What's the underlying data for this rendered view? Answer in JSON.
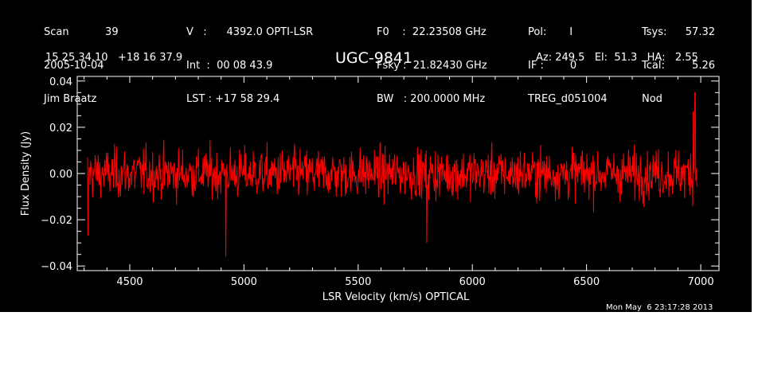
{
  "header": {
    "col1": [
      "Scan           39",
      "2005-10-04",
      "Jim Braatz"
    ],
    "col2": [
      "V   :      4392.0 OPTI-LSR",
      "Int  :  00 08 43.9",
      "LST : +17 58 29.4"
    ],
    "col3": [
      "F0    :  22.23508 GHz",
      "Fsky :  21.82430 GHz",
      "BW   : 200.0000 MHz"
    ],
    "col4": [
      "Pol:       I",
      "IF :        0",
      "TREG_d051004"
    ],
    "col5a": [
      "Tsys:",
      "Tcal:",
      "Nod"
    ],
    "col5b": [
      "57.32",
      "5.26",
      ""
    ],
    "coords": "15 25 34.10   +18 16 37.9",
    "source": "UGC-9841",
    "azel": "Az: 249.5   El:  51.3   HA:   2.55",
    "timestamp": "Mon May  6 23:17:28 2013"
  },
  "chart_data": {
    "type": "line",
    "title": "UGC-9841",
    "xlabel": "LSR Velocity (km/s) OPTICAL",
    "ylabel": "Flux Density (Jy)",
    "xlim": [
      4270,
      7080
    ],
    "ylim": [
      -0.042,
      0.042
    ],
    "x_start": 4315,
    "x_end": 6985,
    "n_channels": 1200,
    "noise_rms": 0.0075,
    "xticks": [
      4500,
      5000,
      5500,
      6000,
      6500,
      7000
    ],
    "xtick_labels": [
      "4500",
      "5000",
      "5500",
      "6000",
      "6500",
      "7000"
    ],
    "yticks": [
      -0.04,
      -0.02,
      0.0,
      0.02,
      0.04
    ],
    "ytick_labels": [
      "−0.04",
      "−0.02",
      "0.00",
      "0.02",
      "0.04"
    ],
    "features": [
      {
        "x": 4920,
        "y": -0.036
      },
      {
        "x": 5800,
        "y": -0.03
      },
      {
        "x": 4318,
        "y": -0.027
      },
      {
        "x": 6975,
        "y": 0.035
      },
      {
        "x": 6968,
        "y": 0.027
      }
    ],
    "series": [
      {
        "color": "#ff0000"
      }
    ],
    "grid": false
  }
}
